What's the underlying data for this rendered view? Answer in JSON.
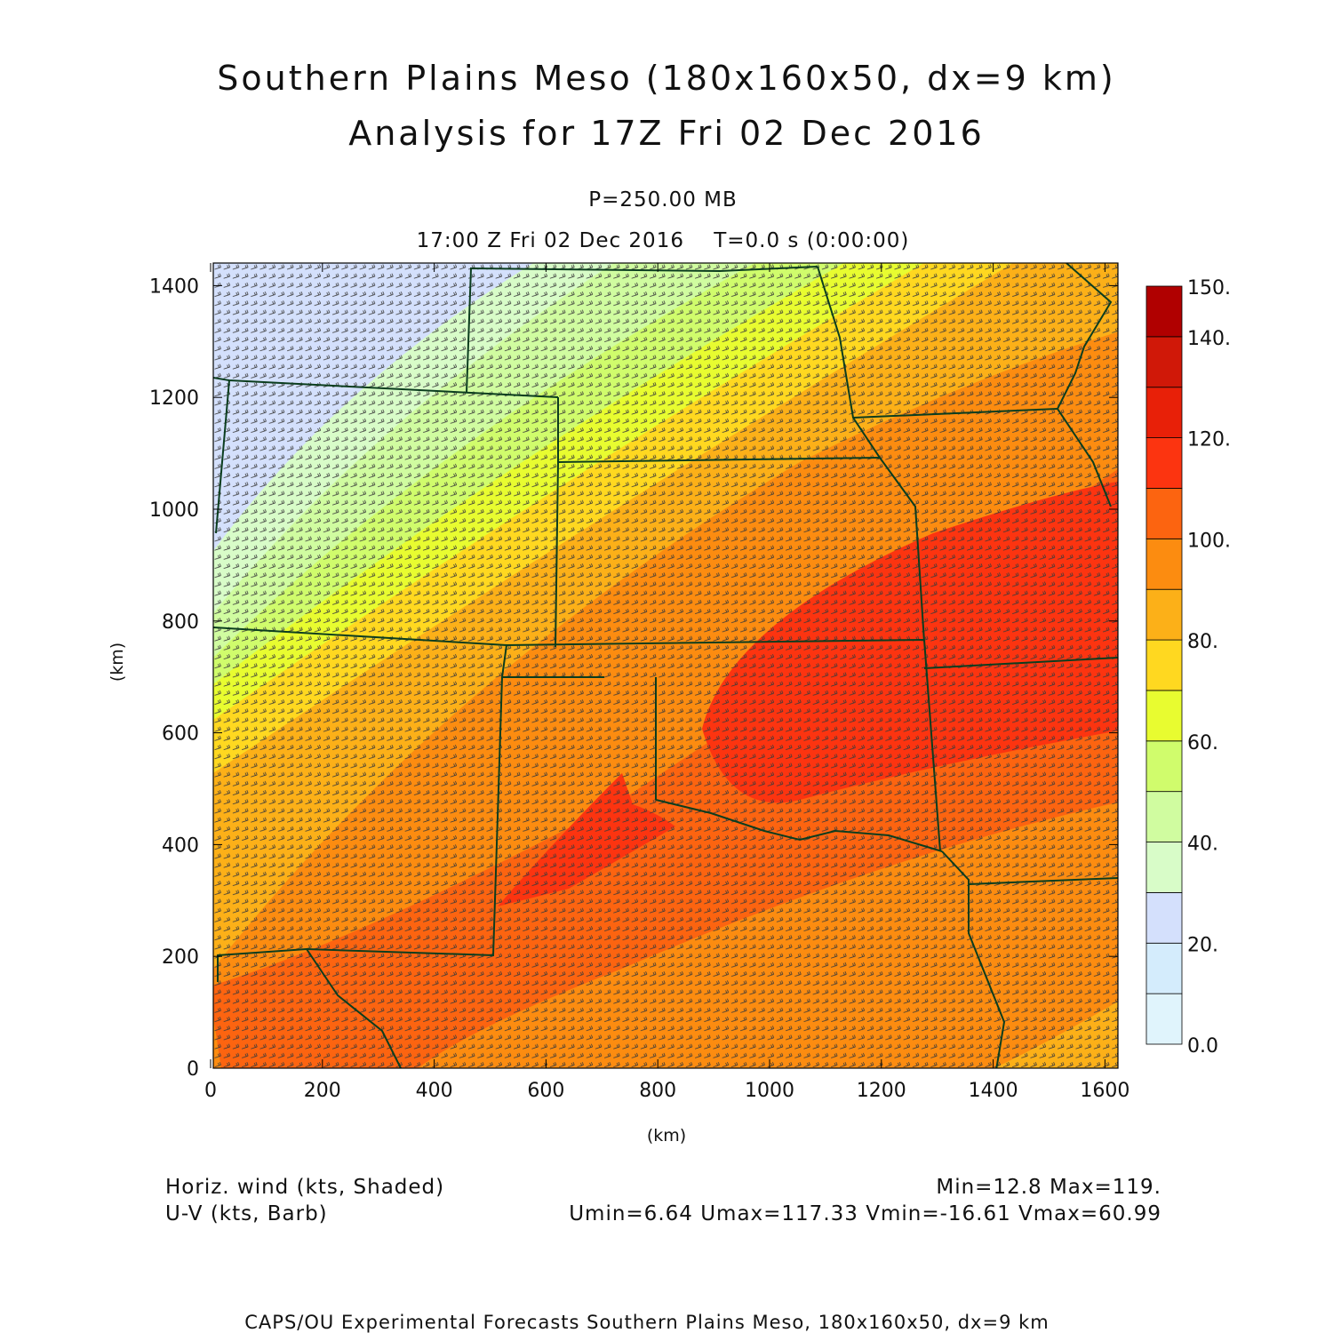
{
  "title": {
    "line1": "Southern Plains Meso (180x160x50, dx=9 km)",
    "line2": "Analysis for 17Z Fri 02 Dec 2016"
  },
  "level": "P=250.00 MB",
  "time_line": "17:00 Z Fri 02 Dec 2016    T=0.0 s (0:00:00)",
  "footer": {
    "shaded_label": "Horiz. wind (kts, Shaded)",
    "barb_label": "U-V (kts, Barb)",
    "minmax": "Min=12.8 Max=119.",
    "uv_stats": "Umin=6.64 Umax=117.33 Vmin=-16.61 Vmax=60.99",
    "credit": "CAPS/OU Experimental Forecasts  Southern Plains Meso, 180x160x50, dx=9 km"
  },
  "chart_data": {
    "type": "heatmap",
    "title": "Southern Plains Meso (180x160x50, dx=9 km) Analysis for 17Z Fri 02 Dec 2016",
    "variable": "Horiz. wind (kts, Shaded) with U-V barbs",
    "xlabel": "(km)",
    "ylabel": "(km)",
    "xlim": [
      0,
      1620
    ],
    "ylim": [
      0,
      1440
    ],
    "xticks": [
      "0",
      "200",
      "400",
      "600",
      "800",
      "1000",
      "1200",
      "1400",
      "1600"
    ],
    "yticks": [
      "0",
      "200",
      "400",
      "600",
      "800",
      "1000",
      "1200",
      "1400"
    ],
    "field_min": 12.8,
    "field_max": 119,
    "colorbar": {
      "levels": [
        0,
        10,
        20,
        30,
        40,
        50,
        60,
        70,
        80,
        90,
        100,
        110,
        120,
        130,
        140,
        150
      ],
      "labels": [
        {
          "value": 0,
          "text": "0.0"
        },
        {
          "value": 20,
          "text": "20."
        },
        {
          "value": 40,
          "text": "40."
        },
        {
          "value": 60,
          "text": "60."
        },
        {
          "value": 80,
          "text": "80."
        },
        {
          "value": 100,
          "text": "100."
        },
        {
          "value": 120,
          "text": "120."
        },
        {
          "value": 140,
          "text": "140."
        },
        {
          "value": 150,
          "text": "150."
        }
      ],
      "colors": [
        "#e0f4fc",
        "#d4ecfc",
        "#d4e0fc",
        "#d8fcc8",
        "#d0fca0",
        "#d0fc6c",
        "#e8fc30",
        "#ffd820",
        "#fcb018",
        "#fc8c10",
        "#fc6410",
        "#fc3410",
        "#e82008",
        "#d01808",
        "#b00000"
      ]
    },
    "border_color": "#0b3d1e",
    "barb_color": "#3a3a3a"
  }
}
